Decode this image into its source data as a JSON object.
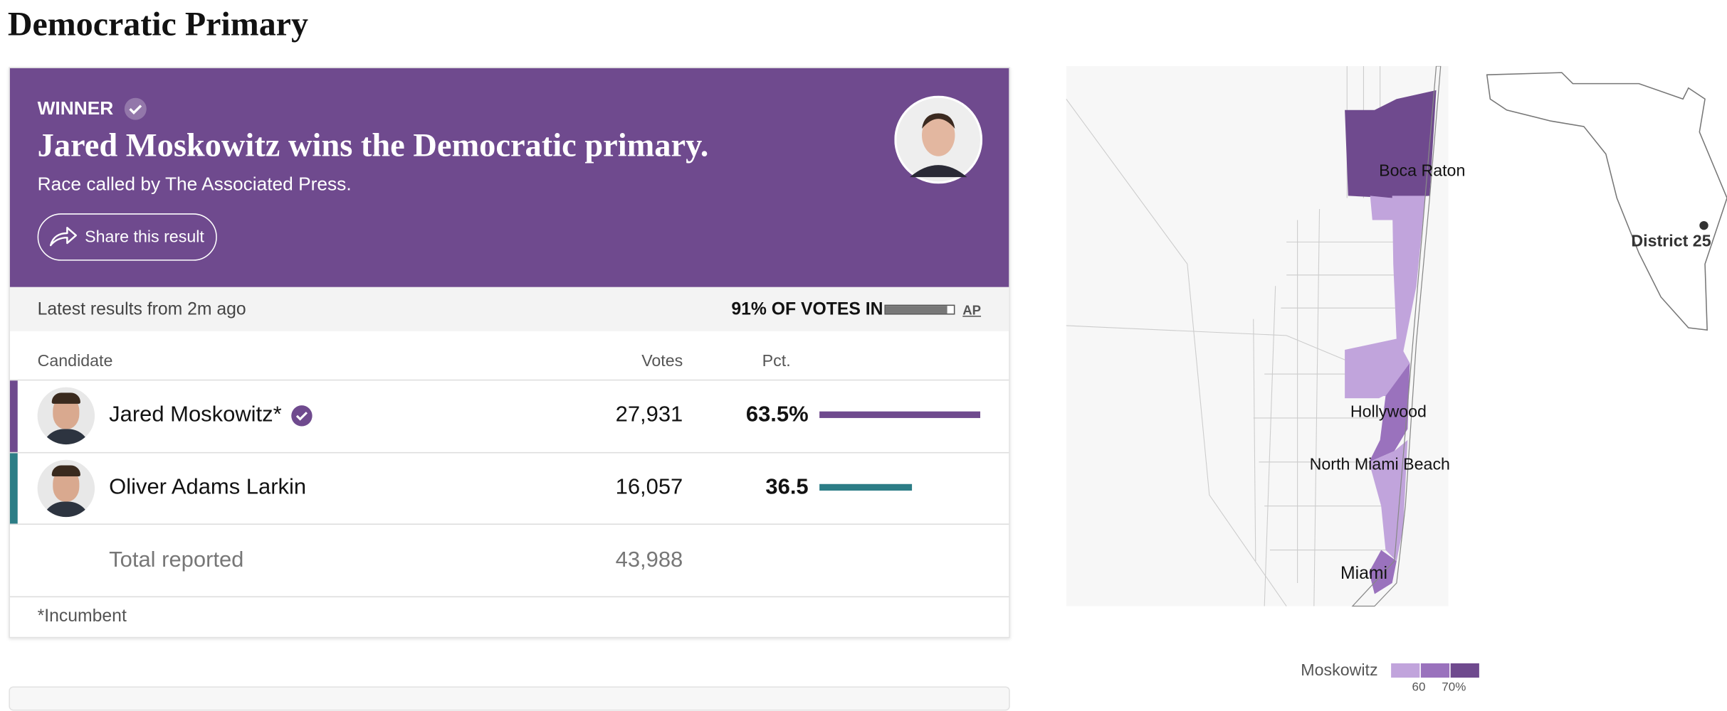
{
  "header": {
    "title": "Democratic Primary"
  },
  "result": {
    "badge": "WINNER",
    "headline": "Jared Moskowitz wins the Democratic primary.",
    "subtitle": "Race called by The Associated Press.",
    "share": "Share this result"
  },
  "status": {
    "latest": "Latest results from 2m ago",
    "reporting_label": "91% OF VOTES IN",
    "reporting_percent": 91,
    "source": "AP"
  },
  "table": {
    "columns": [
      "Candidate",
      "Votes",
      "Pct."
    ],
    "rows": [
      {
        "name": "Jared Moskowitz*",
        "votes": "27,931",
        "pct": 63.5,
        "pct_label": "63.5%",
        "color": "#6f4a8e",
        "winner": true
      },
      {
        "name": "Oliver Adams Larkin",
        "votes": "16,057",
        "pct": 36.5,
        "pct_label": "36.5",
        "color": "#2c7d86",
        "winner": false
      }
    ],
    "total": {
      "label": "Total reported",
      "votes": "43,988"
    },
    "footnote": "*Incumbent"
  },
  "map": {
    "places": [
      "Boca Raton",
      "Hollywood",
      "North Miami Beach",
      "Miami"
    ],
    "district": "District 25",
    "legend": {
      "name": "Moskowitz",
      "colors": [
        "#c1a4dc",
        "#9a72bd",
        "#6f4a8e"
      ],
      "ticks": [
        "60",
        "70%"
      ]
    }
  }
}
